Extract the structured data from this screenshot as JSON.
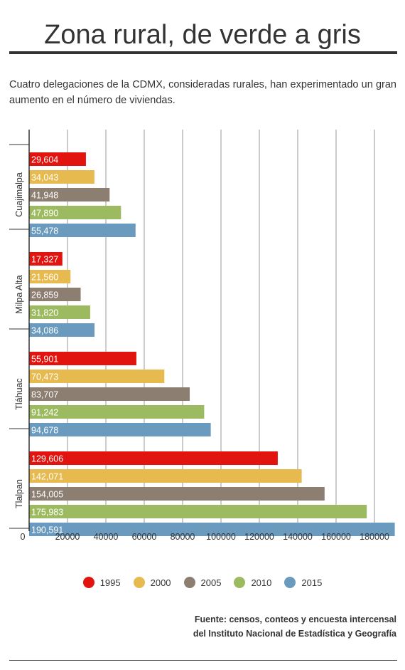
{
  "title": "Zona rural, de verde a gris",
  "description": "Cuatro delegaciones de la CDMX, consideradas rurales, han experimentado un gran aumento en el número de viviendas.",
  "source_line1": "Fuente: censos, conteos y encuesta intercensal",
  "source_line2": "del Instituto Nacional de Estadística y Geografía",
  "colors": {
    "1995": "#e2140f",
    "2000": "#e6ba4f",
    "2005": "#8c7e70",
    "2010": "#9cba5f",
    "2015": "#6a9bbf"
  },
  "chart_data": {
    "type": "bar",
    "orientation": "horizontal",
    "categories": [
      "Cuajimalpa",
      "Milpa Alta",
      "Tláhuac",
      "Tlalpan"
    ],
    "series": [
      {
        "name": "1995",
        "values": [
          29604,
          17327,
          55901,
          129606
        ],
        "labels": [
          "29,604",
          "17,327",
          "55,901",
          "129,606"
        ]
      },
      {
        "name": "2000",
        "values": [
          34043,
          21560,
          70473,
          142071
        ],
        "labels": [
          "34,043",
          "21,560",
          "70,473",
          "142,071"
        ]
      },
      {
        "name": "2005",
        "values": [
          41948,
          26859,
          83707,
          154005
        ],
        "labels": [
          "41,948",
          "26,859",
          "83,707",
          "154,005"
        ]
      },
      {
        "name": "2010",
        "values": [
          47890,
          31820,
          91242,
          175983
        ],
        "labels": [
          "47,890",
          "31,820",
          "91,242",
          "175,983"
        ]
      },
      {
        "name": "2015",
        "values": [
          55478,
          34086,
          94678,
          190591
        ],
        "labels": [
          "55,478",
          "34,086",
          "94,678",
          "190,591"
        ]
      }
    ],
    "x_ticks": [
      0,
      20000,
      40000,
      60000,
      80000,
      100000,
      120000,
      140000,
      160000,
      180000
    ],
    "x_tick_labels": [
      "0",
      "20000",
      "40000",
      "60000",
      "80000",
      "100000",
      "120000",
      "140000",
      "160000",
      "180000"
    ],
    "xlim": [
      0,
      192000
    ],
    "grid": "vertical",
    "legend": "bottom",
    "legend_entries": [
      "1995",
      "2000",
      "2005",
      "2010",
      "2015"
    ]
  }
}
